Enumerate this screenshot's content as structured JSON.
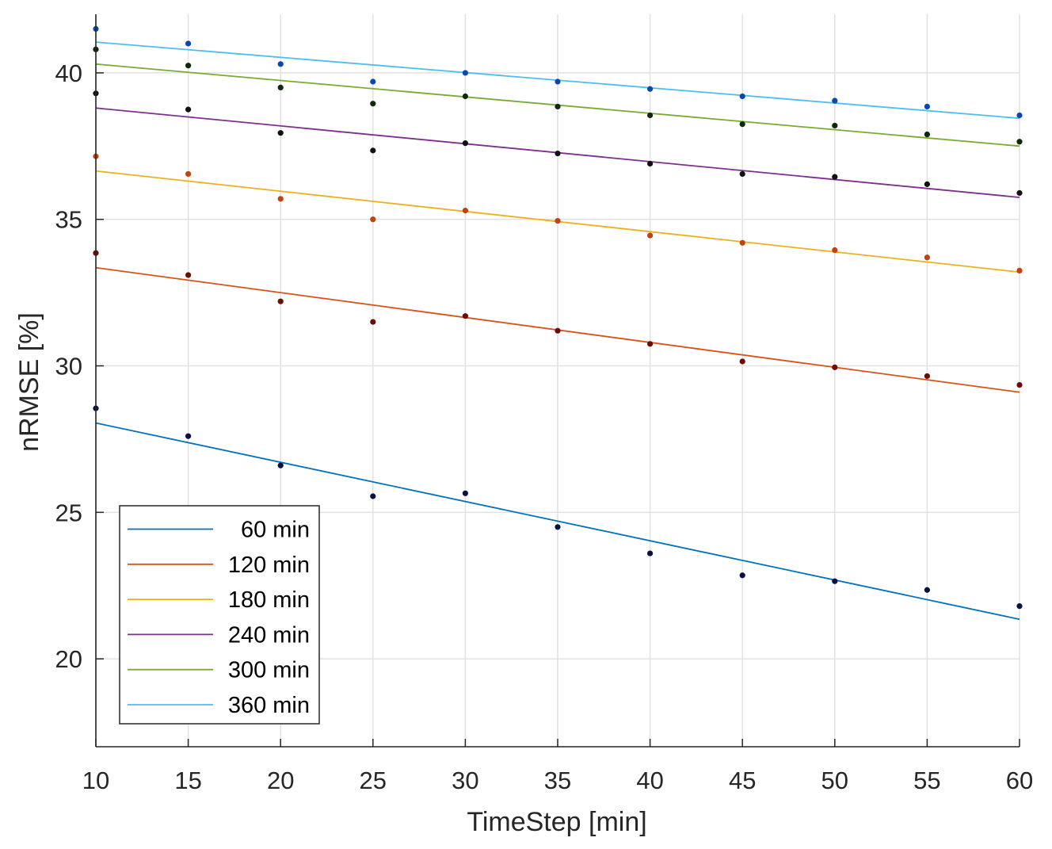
{
  "chart_data": {
    "type": "scatter",
    "xlabel": "TimeStep [min]",
    "ylabel": "nRMSE [%]",
    "xlim": [
      10,
      60
    ],
    "ylim": [
      17,
      42
    ],
    "xticks": [
      10,
      15,
      20,
      25,
      30,
      35,
      40,
      45,
      50,
      55,
      60
    ],
    "yticks": [
      20,
      25,
      30,
      35,
      40
    ],
    "grid": true,
    "legend_position": "bottom-left",
    "x": [
      10,
      15,
      20,
      25,
      30,
      35,
      40,
      45,
      50,
      55,
      60
    ],
    "series": [
      {
        "name": "60 min",
        "line_color": "#0072BD",
        "point_color": "#0a1040",
        "points": [
          28.55,
          27.6,
          26.6,
          25.55,
          25.65,
          24.5,
          23.6,
          22.85,
          22.65,
          22.35,
          21.8
        ],
        "fit": [
          28.05,
          21.35
        ]
      },
      {
        "name": "120 min",
        "line_color": "#D95319",
        "point_color": "#6b0d05",
        "points": [
          33.85,
          33.1,
          32.2,
          31.5,
          31.7,
          31.2,
          30.75,
          30.15,
          29.95,
          29.65,
          29.35
        ],
        "fit": [
          33.35,
          29.1
        ]
      },
      {
        "name": "180 min",
        "line_color": "#EDB120",
        "point_color": "#c2410c",
        "points": [
          37.15,
          36.55,
          35.7,
          35.0,
          35.3,
          34.95,
          34.45,
          34.2,
          33.95,
          33.7,
          33.25
        ],
        "fit": [
          36.65,
          33.2
        ]
      },
      {
        "name": "240 min",
        "line_color": "#7E2F8E",
        "point_color": "#111111",
        "points": [
          39.3,
          38.75,
          37.95,
          37.35,
          37.6,
          37.25,
          36.9,
          36.55,
          36.45,
          36.2,
          35.9
        ],
        "fit": [
          38.8,
          35.75
        ]
      },
      {
        "name": "300 min",
        "line_color": "#77AC30",
        "point_color": "#0f2a0a",
        "points": [
          40.8,
          40.25,
          39.5,
          38.95,
          39.2,
          38.85,
          38.55,
          38.25,
          38.2,
          37.9,
          37.65
        ],
        "fit": [
          40.3,
          37.5
        ]
      },
      {
        "name": "360 min",
        "line_color": "#4DBEEE",
        "point_color": "#0a48b0",
        "points": [
          41.5,
          41.0,
          40.3,
          39.7,
          40.0,
          39.7,
          39.45,
          39.2,
          39.05,
          38.85,
          38.55
        ],
        "fit": [
          41.05,
          38.45
        ]
      }
    ]
  }
}
